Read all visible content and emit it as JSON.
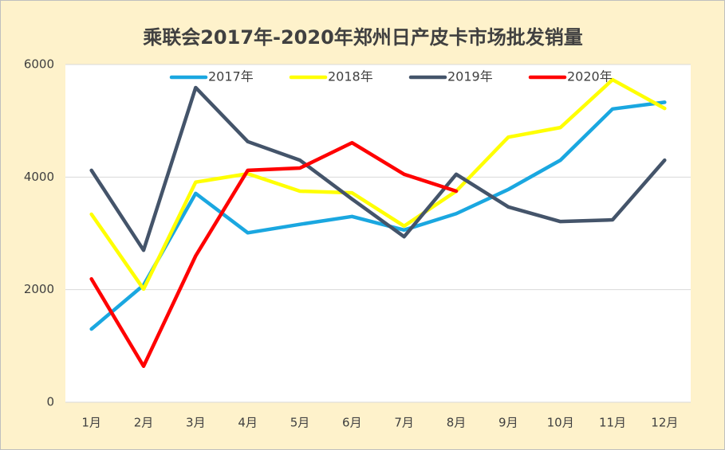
{
  "chart_data": {
    "type": "line",
    "title": "乘联会2017年-2020年郑州日产皮卡市场批发销量",
    "categories": [
      "1月",
      "2月",
      "3月",
      "4月",
      "5月",
      "6月",
      "7月",
      "8月",
      "9月",
      "10月",
      "11月",
      "12月"
    ],
    "series": [
      {
        "name": "2017年",
        "color": "#1aa7e0",
        "values": [
          1300,
          2080,
          3710,
          3010,
          3160,
          3300,
          3060,
          3350,
          3780,
          4300,
          5210,
          5330
        ]
      },
      {
        "name": "2018年",
        "color": "#ffff00",
        "values": [
          3340,
          2010,
          3910,
          4060,
          3750,
          3720,
          3130,
          3750,
          4710,
          4880,
          5730,
          5220
        ]
      },
      {
        "name": "2019年",
        "color": "#44546a",
        "values": [
          4120,
          2700,
          5590,
          4630,
          4300,
          3610,
          2940,
          4050,
          3470,
          3210,
          3240,
          4300
        ]
      },
      {
        "name": "2020年",
        "color": "#ff0000",
        "values": [
          2190,
          640,
          2600,
          4120,
          4160,
          4610,
          4050,
          3750,
          null,
          null,
          null,
          null
        ]
      }
    ],
    "ylim": [
      0,
      6000
    ],
    "yticks": [
      0,
      2000,
      4000,
      6000
    ],
    "grid": true,
    "legend": "top"
  }
}
